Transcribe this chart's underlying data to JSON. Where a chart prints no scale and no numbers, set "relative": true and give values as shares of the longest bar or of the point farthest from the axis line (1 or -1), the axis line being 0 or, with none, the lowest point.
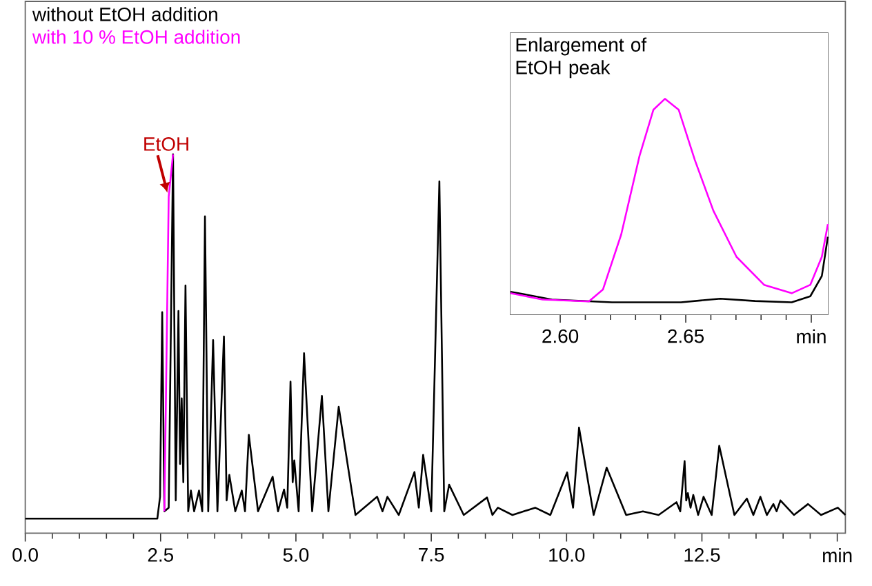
{
  "chart_data": [
    {
      "type": "line",
      "relative": true,
      "legend": "top left",
      "xlim": [
        0,
        15.15
      ],
      "xticks": [
        {
          "value": 0,
          "label": "0.0"
        },
        2.5,
        {
          "value": 5,
          "label": "5.0"
        },
        7.5,
        {
          "value": 10,
          "label": "10.0"
        },
        12.5,
        {
          "value": 15,
          "label": "min"
        }
      ],
      "x": [
        0,
        2.44,
        2.49,
        2.53,
        2.57,
        2.65,
        2.73,
        2.78,
        2.83,
        2.86,
        2.89,
        2.92,
        2.96,
        3.01,
        3.06,
        3.12,
        3.21,
        3.27,
        3.32,
        3.38,
        3.47,
        3.55,
        3.67,
        3.72,
        3.77,
        3.88,
        4.0,
        4.06,
        4.13,
        4.3,
        4.57,
        4.67,
        4.78,
        4.84,
        4.9,
        4.94,
        4.97,
        5.05,
        5.15,
        5.3,
        5.48,
        5.6,
        5.79,
        6.1,
        6.5,
        6.6,
        6.69,
        6.9,
        7.19,
        7.27,
        7.35,
        7.5,
        7.65,
        7.74,
        7.83,
        8.1,
        8.53,
        8.63,
        8.73,
        9.0,
        9.42,
        9.7,
        10.01,
        10.12,
        10.23,
        10.5,
        10.74,
        11.1,
        11.41,
        11.7,
        12.03,
        12.1,
        12.18,
        12.21,
        12.24,
        12.29,
        12.34,
        12.43,
        12.53,
        12.68,
        12.82,
        13.1,
        13.33,
        13.45,
        13.58,
        13.7,
        13.82,
        13.88,
        13.95,
        14.2,
        14.46,
        14.7,
        15.01,
        15.15
      ],
      "series": [
        {
          "name": "without EtOH addition",
          "color": "#000000",
          "values": [
            0,
            0,
            0.06,
            0.567,
            0.02,
            0.03,
            1.0,
            0.05,
            0.57,
            0.15,
            0.33,
            0.1,
            0.64,
            0.02,
            0.077,
            0.02,
            0.077,
            0.02,
            0.83,
            0.02,
            0.49,
            0.02,
            0.5,
            0.05,
            0.12,
            0.02,
            0.077,
            0.02,
            0.23,
            0.02,
            0.115,
            0.02,
            0.08,
            0.03,
            0.376,
            0.1,
            0.16,
            0.02,
            0.454,
            0.02,
            0.337,
            0.02,
            0.307,
            0.01,
            0.06,
            0.02,
            0.06,
            0.01,
            0.128,
            0.03,
            0.175,
            0.02,
            0.926,
            0.02,
            0.093,
            0.01,
            0.058,
            0.01,
            0.03,
            0.01,
            0.03,
            0.01,
            0.127,
            0.03,
            0.25,
            0.01,
            0.14,
            0.01,
            0.02,
            0.01,
            0.045,
            0.02,
            0.158,
            0.05,
            0.07,
            0.03,
            0.065,
            0.01,
            0.06,
            0.01,
            0.2,
            0.01,
            0.055,
            0.01,
            0.06,
            0.01,
            0.04,
            0.02,
            0.05,
            0.01,
            0.04,
            0.01,
            0.03,
            0.01
          ]
        },
        {
          "name": "with 10 % EtOH addition",
          "color": "#ff00ff",
          "values": [
            null,
            null,
            null,
            null,
            0.02,
            0.884,
            1.0,
            null,
            null,
            null,
            null,
            null,
            null,
            null,
            null,
            null,
            null,
            null,
            null,
            null,
            null,
            null,
            null,
            null,
            null,
            null,
            null,
            null,
            null,
            null,
            null,
            null,
            null,
            null,
            null,
            null,
            null,
            null,
            null,
            null,
            null,
            null,
            null,
            null,
            null,
            null,
            null,
            null,
            null,
            null,
            null,
            null,
            null,
            null,
            null,
            null,
            null,
            null,
            null,
            null,
            null,
            null,
            null,
            null,
            null,
            null,
            null,
            null,
            null,
            null,
            null,
            null,
            null,
            null,
            null,
            null,
            null,
            null,
            null,
            null,
            null,
            null,
            null,
            null,
            null,
            null,
            null,
            null,
            null,
            null,
            null,
            null,
            null,
            null
          ]
        }
      ],
      "annotations": [
        {
          "text": "EtOH",
          "x": 2.65,
          "y": 0.884
        }
      ]
    },
    {
      "type": "line",
      "relative": true,
      "title": "Enlargement of EtOH peak",
      "xlim": [
        2.5802,
        2.7066
      ],
      "xticks": [
        {
          "value": 2.6,
          "label": "2.60"
        },
        2.65,
        {
          "value": 2.7,
          "label": "min"
        }
      ],
      "series": [
        {
          "color": "#000000",
          "x": [
            2.5802,
            2.5967,
            2.6206,
            2.6481,
            2.6638,
            2.6776,
            2.6922,
            2.6996,
            2.7042,
            2.7066
          ],
          "values": [
            0.105,
            0.069,
            0.056,
            0.056,
            0.073,
            0.062,
            0.056,
            0.084,
            0.178,
            0.36
          ]
        },
        {
          "color": "#ff00ff",
          "x": [
            2.5802,
            2.593,
            2.6114,
            2.617,
            2.6243,
            2.6316,
            2.6371,
            2.6417,
            2.6472,
            2.6536,
            2.661,
            2.6702,
            2.6812,
            2.6922,
            2.6996,
            2.7042,
            2.7066
          ],
          "values": [
            0.098,
            0.069,
            0.06,
            0.115,
            0.371,
            0.736,
            0.949,
            1.0,
            0.949,
            0.717,
            0.481,
            0.267,
            0.137,
            0.098,
            0.137,
            0.267,
            0.418
          ]
        }
      ]
    }
  ]
}
